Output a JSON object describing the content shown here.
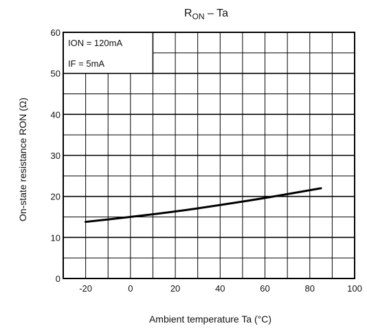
{
  "chart_data": {
    "type": "line",
    "title_main": "R",
    "title_sub": "ON",
    "title_rest": " – Ta",
    "xlabel": "Ambient temperature Ta    (°C)",
    "ylabel": "On-state resistance    RON    (Ω)",
    "xlim": [
      -30,
      100
    ],
    "ylim": [
      0,
      60
    ],
    "x_ticks": [
      -20,
      0,
      20,
      40,
      60,
      80,
      100
    ],
    "x_tick_labels": [
      "-20",
      "0",
      "20",
      "40",
      "60",
      "80",
      "100"
    ],
    "y_ticks": [
      0,
      10,
      20,
      30,
      40,
      50,
      60
    ],
    "y_tick_labels": [
      "0",
      "10",
      "20",
      "30",
      "40",
      "50",
      "60"
    ],
    "grid": true,
    "annotations": [
      "ION = 120mA",
      "IF = 5mA"
    ],
    "series": [
      {
        "x": [
          -20,
          0,
          20,
          40,
          60,
          85
        ],
        "y": [
          13.8,
          15,
          16.3,
          17.9,
          19.6,
          22
        ]
      }
    ]
  }
}
